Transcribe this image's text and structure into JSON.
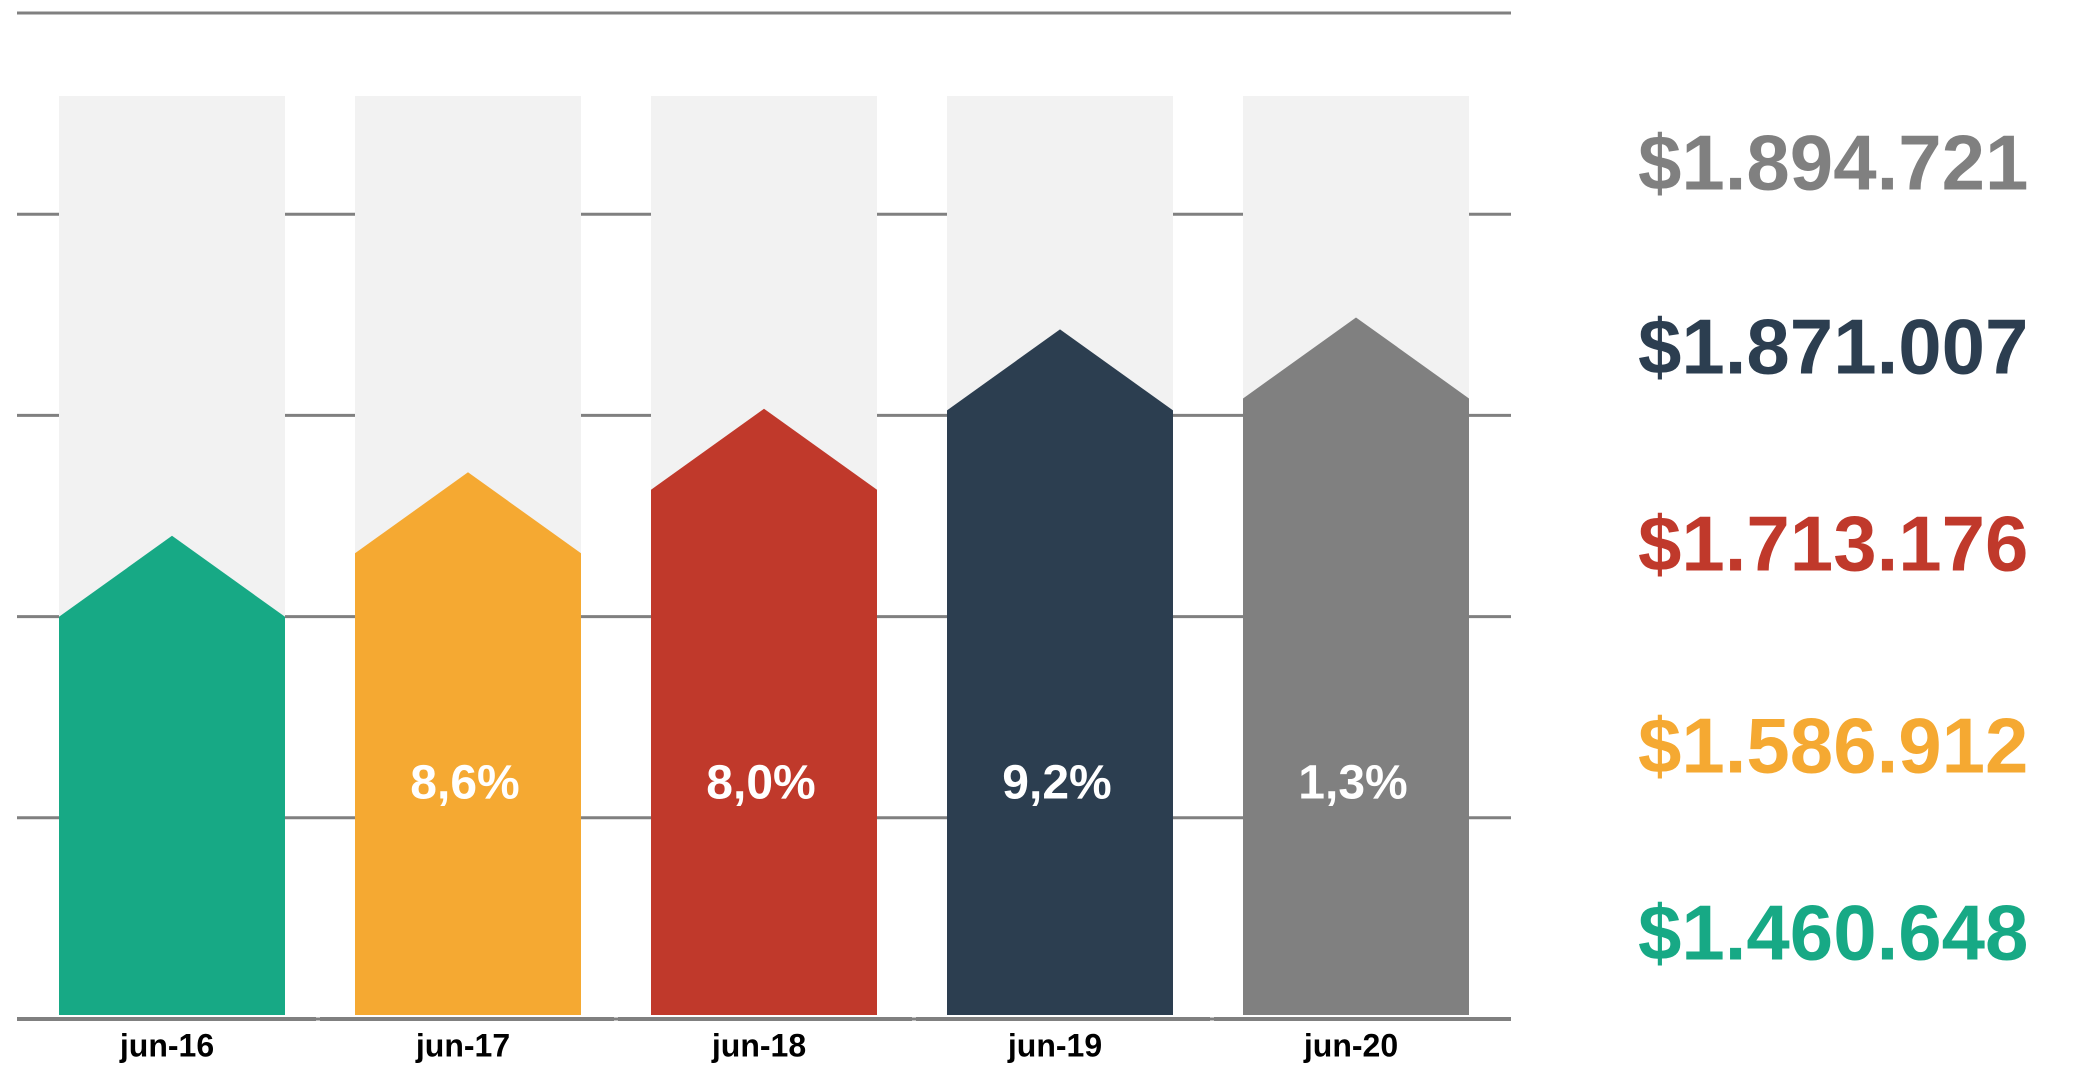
{
  "chart_data": {
    "type": "bar",
    "categories": [
      "jun-16",
      "jun-17",
      "jun-18",
      "jun-19",
      "jun-20"
    ],
    "values": [
      1460648,
      1586912,
      1713176,
      1871007,
      1894721
    ],
    "value_labels": [
      "$1.460.648",
      "$1.586.912",
      "$1.713.176",
      "$1.871.007",
      "$1.894.721"
    ],
    "growth_labels": [
      null,
      "8,6%",
      "8,0%",
      "9,2%",
      "1,3%"
    ],
    "colors": [
      "#17a985",
      "#f5a932",
      "#c0392b",
      "#2c3e50",
      "#808080"
    ],
    "ylim": [
      500000,
      2500000
    ],
    "yticks": [
      500000,
      900000,
      1300000,
      1700000,
      2100000,
      2500000
    ],
    "grid": true
  }
}
